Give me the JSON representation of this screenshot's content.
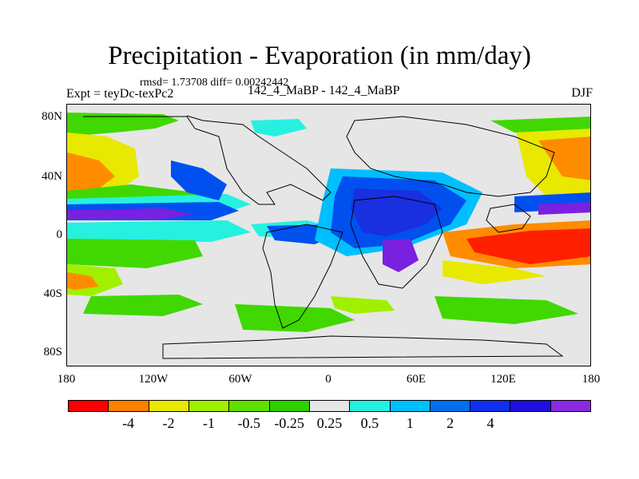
{
  "title": "Precipitation - Evaporation (in mm/day)",
  "stats": "rmsd= 1.73708 diff= 0.00242442",
  "left_label": "Expt = teyDc-texPc2",
  "center_label": "142_4_MaBP - 142_4_MaBP",
  "right_label": "DJF",
  "y_axis_labels": [
    "80N",
    "40N",
    "0",
    "40S",
    "80S"
  ],
  "x_axis_labels": [
    "180",
    "120W",
    "60W",
    "0",
    "60E",
    "120E",
    "180"
  ],
  "colorbar": {
    "colors": [
      "#ff0000",
      "#ff7f00",
      "#e8e800",
      "#a0f000",
      "#60e000",
      "#2dd000",
      "#e6e6e6",
      "#26f0e0",
      "#00bfff",
      "#0070f0",
      "#1030f0",
      "#2010e0",
      "#8a2be2"
    ],
    "labels": [
      "-4",
      "-2",
      "-1",
      "-0.5",
      "-0.25",
      "0.25",
      "0.5",
      "1",
      "2",
      "4"
    ]
  },
  "map_colors": {
    "neutral": "#e6e6e6",
    "red": "#ff2000",
    "orange": "#ff8c00",
    "yellow": "#e8e800",
    "lightgreen": "#a0f000",
    "green": "#40d800",
    "cyan": "#26f0e0",
    "lightblue": "#00bfff",
    "blue": "#0050f0",
    "darkblue": "#1830e0",
    "purple": "#7a20e0"
  }
}
